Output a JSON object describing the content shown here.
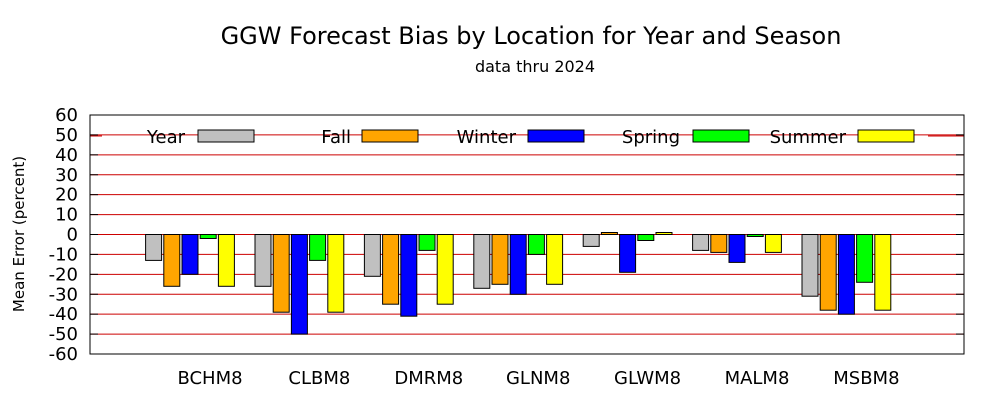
{
  "chart_data": {
    "type": "bar",
    "title": "GGW Forecast Bias by Location for Year and Season",
    "subtitle": "data thru 2024",
    "xlabel": "",
    "ylabel": "Mean Error (percent)",
    "ylim": [
      -60,
      60
    ],
    "yticks": [
      60,
      50,
      40,
      30,
      20,
      10,
      0,
      -10,
      -20,
      -30,
      -40,
      -50,
      -60
    ],
    "grid": true,
    "grid_color": "#cc0000",
    "legend_position": "top",
    "categories": [
      "BCHM8",
      "CLBM8",
      "DMRM8",
      "GLNM8",
      "GLWM8",
      "MALM8",
      "MSBM8"
    ],
    "series": [
      {
        "name": "Year",
        "color": "#c0c0c0",
        "values": [
          -13,
          -26,
          -21,
          -27,
          -6,
          -8,
          -31
        ]
      },
      {
        "name": "Fall",
        "color": "#ffa500",
        "values": [
          -26,
          -39,
          -35,
          -25,
          1,
          -9,
          -38
        ]
      },
      {
        "name": "Winter",
        "color": "#0000ff",
        "values": [
          -20,
          -50,
          -41,
          -30,
          -19,
          -14,
          -40
        ]
      },
      {
        "name": "Spring",
        "color": "#00ff00",
        "values": [
          -2,
          -13,
          -8,
          -10,
          -3,
          -1,
          -24
        ]
      },
      {
        "name": "Summer",
        "color": "#ffff00",
        "values": [
          -26,
          -39,
          -35,
          -25,
          1,
          -9,
          -38
        ]
      }
    ]
  }
}
